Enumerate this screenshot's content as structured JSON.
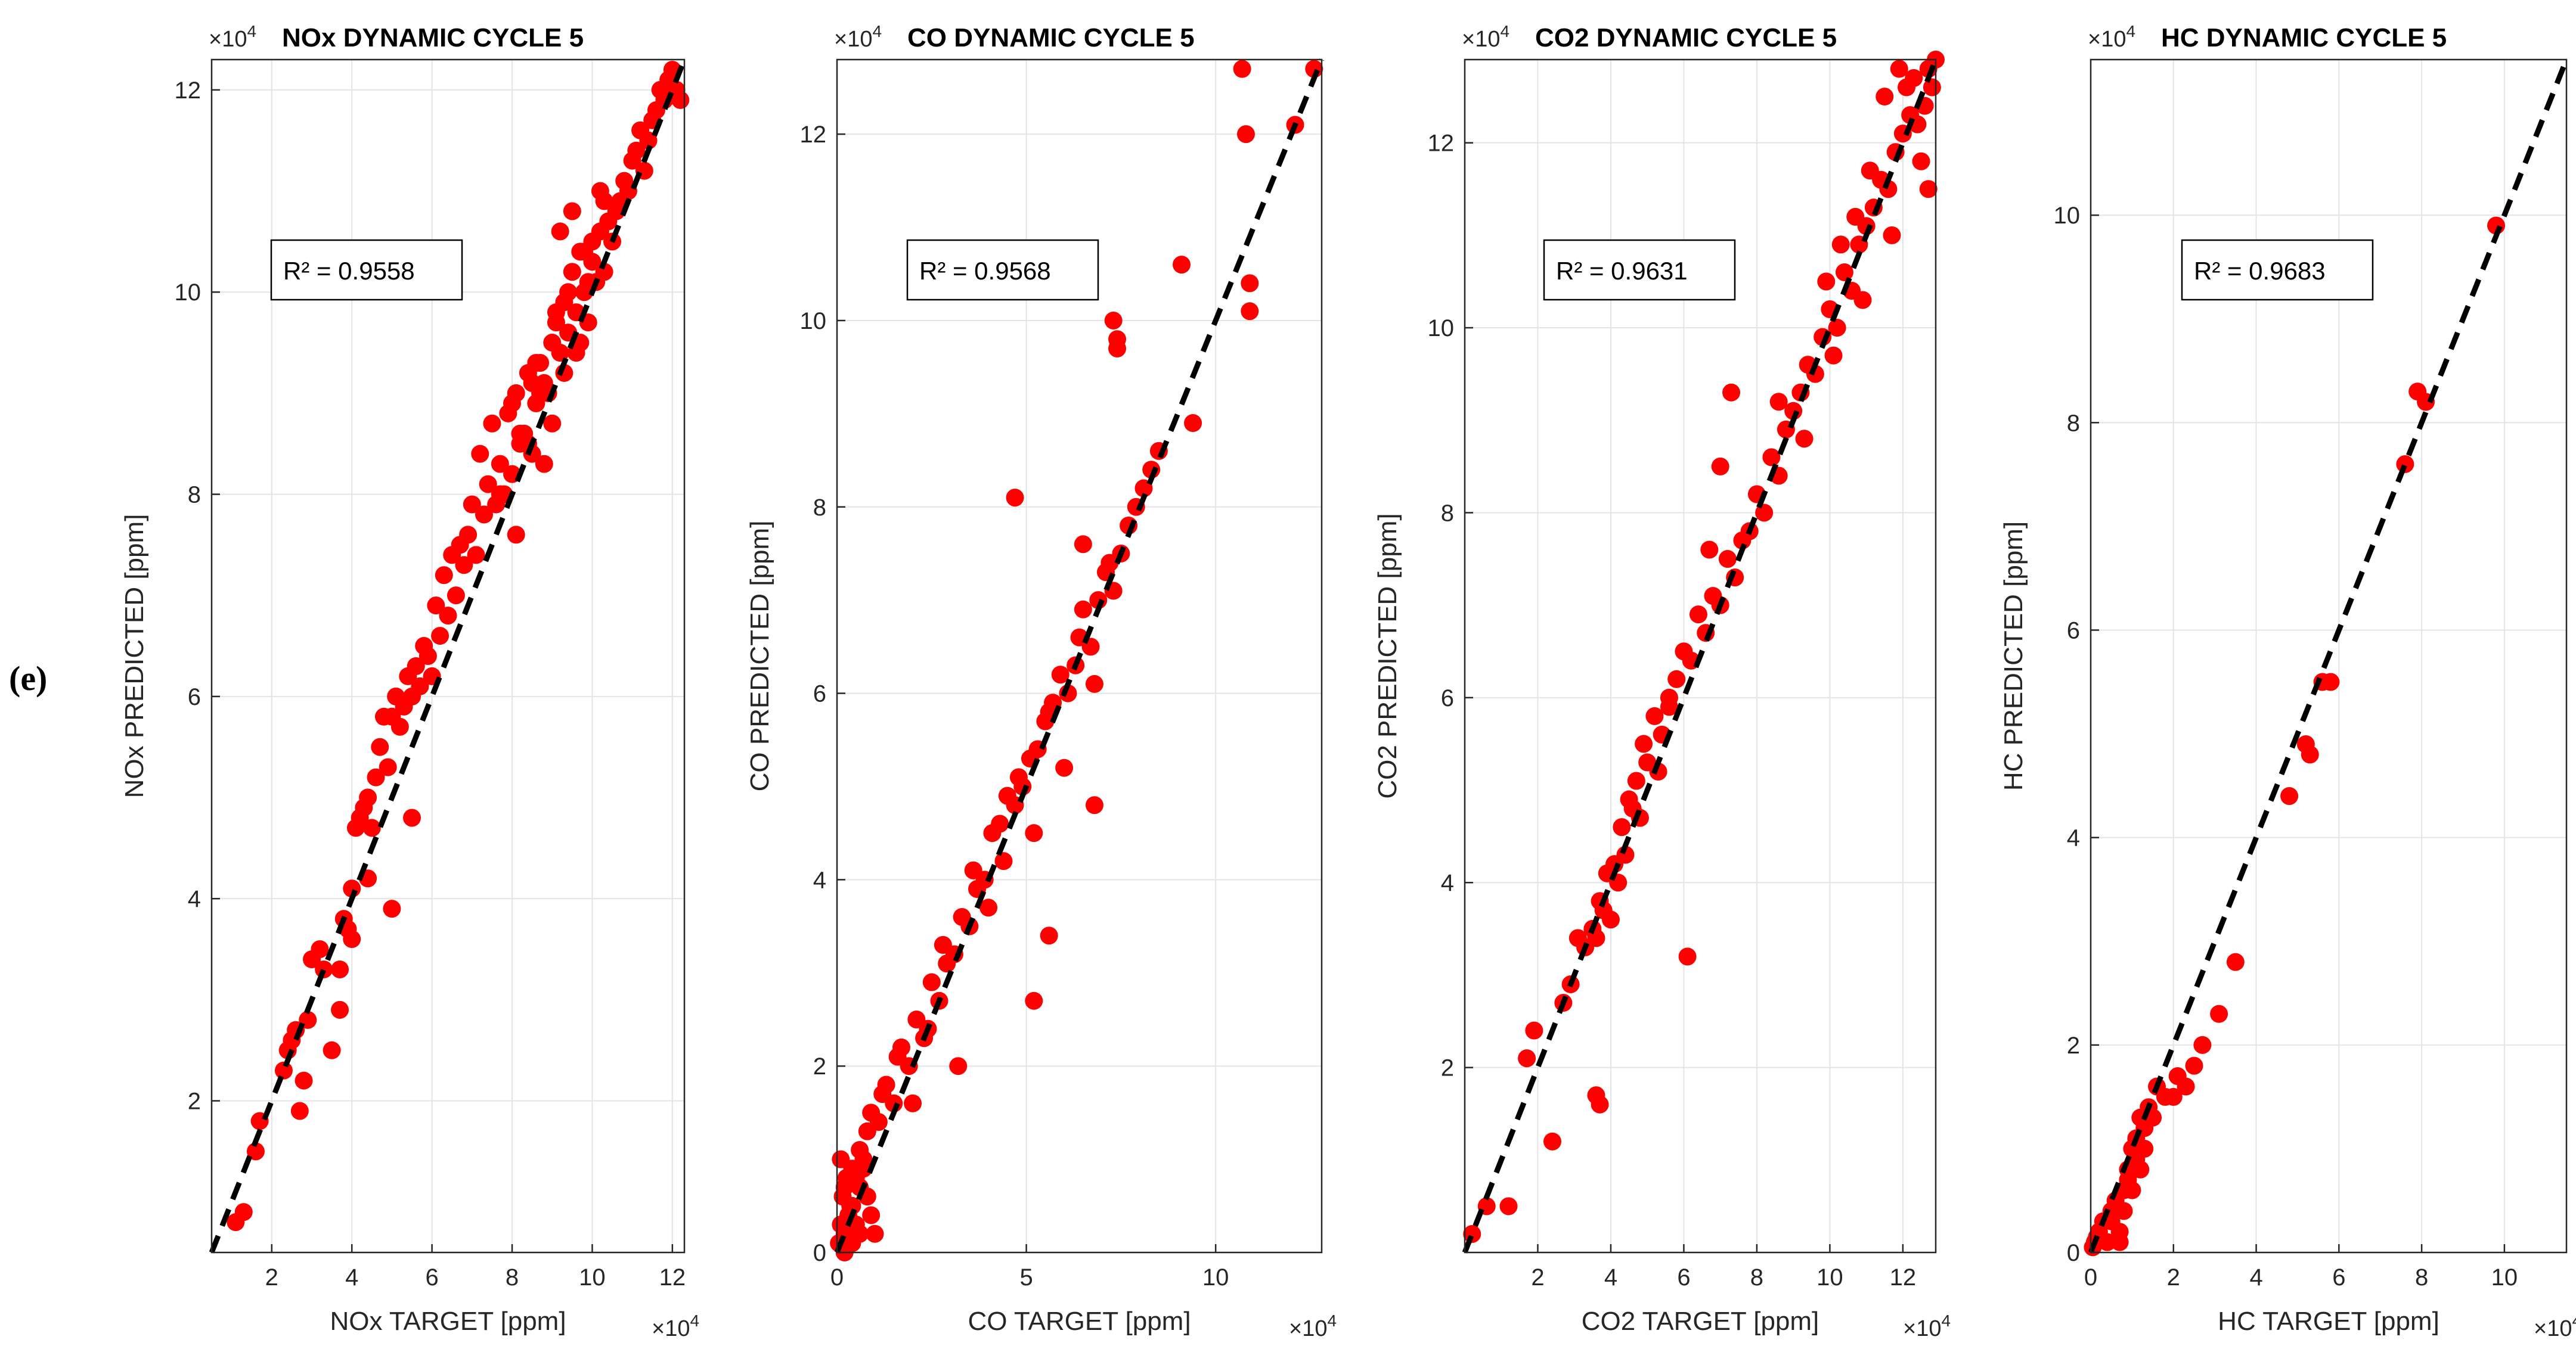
{
  "figure": {
    "panel_label": "(e)"
  },
  "colors": {
    "point": "#ff0000",
    "fit_line": "#000000",
    "grid": "#e4e4e4",
    "axes": "#262626"
  },
  "chart_data": [
    {
      "type": "scatter",
      "title": "NOx DYNAMIC CYCLE 5",
      "xlabel": "NOx TARGET [ppm]",
      "ylabel": "NOx PREDICTED [ppm]",
      "exponent": "×10^4",
      "xlim": [
        0.5,
        12.3
      ],
      "ylim": [
        0.5,
        12.3
      ],
      "xticks": [
        2,
        4,
        6,
        8,
        10,
        12
      ],
      "yticks": [
        2,
        4,
        6,
        8,
        10,
        12
      ],
      "grid": true,
      "r2_label": "R² = 0.9558",
      "r2_position": "upper-left",
      "fit_line": {
        "x": [
          0.5,
          12.3
        ],
        "y": [
          0.5,
          12.3
        ]
      },
      "series": [
        {
          "x": [
            1.1,
            1.3,
            1.6,
            1.7,
            2.3,
            2.4,
            2.5,
            2.6,
            2.8,
            2.9,
            3.0,
            3.2,
            3.3,
            3.5,
            3.7,
            3.8,
            3.9,
            4.0,
            4.1,
            4.2,
            4.3,
            4.4,
            4.5,
            4.6,
            4.7,
            4.8,
            4.9,
            5.0,
            5.1,
            5.2,
            5.3,
            5.4,
            5.5,
            5.6,
            5.7,
            5.8,
            5.9,
            6.0,
            6.1,
            6.2,
            6.3,
            6.4,
            6.5,
            6.6,
            6.7,
            6.8,
            6.9,
            7.0,
            7.1,
            7.2,
            7.3,
            7.4,
            7.5,
            7.6,
            7.7,
            7.8,
            7.9,
            8.0,
            8.1,
            8.2,
            8.3,
            8.4,
            8.5,
            8.6,
            8.7,
            8.8,
            8.9,
            9.0,
            9.1,
            9.2,
            9.3,
            9.4,
            9.5,
            9.6,
            9.7,
            9.8,
            9.9,
            10.0,
            10.1,
            10.2,
            10.3,
            10.4,
            10.5,
            10.6,
            10.7,
            10.8,
            10.9,
            11.0,
            11.1,
            11.2,
            11.3,
            11.4,
            11.5,
            11.6,
            11.7,
            11.8,
            11.9,
            12.0,
            12.1,
            12.2,
            7.7,
            8.1,
            8.4,
            8.7,
            9.0,
            9.3,
            9.6,
            9.9,
            8.0,
            8.5,
            8.8,
            9.1,
            9.4,
            9.7,
            10.0,
            10.3,
            8.2,
            8.6,
            9.2,
            9.5,
            9.8,
            10.2,
            4.4,
            5.0,
            5.5,
            4.0,
            3.7,
            2.7
          ],
          "y": [
            0.8,
            0.9,
            1.5,
            1.8,
            2.3,
            2.5,
            2.6,
            2.7,
            2.2,
            2.8,
            3.4,
            3.5,
            3.3,
            2.5,
            2.9,
            3.8,
            3.7,
            4.1,
            4.7,
            4.8,
            4.9,
            5.0,
            4.7,
            5.2,
            5.5,
            5.8,
            5.3,
            5.8,
            6.0,
            5.7,
            5.9,
            6.2,
            6.0,
            6.3,
            6.1,
            6.5,
            6.4,
            6.2,
            6.9,
            6.6,
            7.2,
            6.8,
            7.4,
            7.0,
            7.5,
            7.3,
            7.6,
            7.9,
            7.4,
            8.4,
            7.8,
            8.1,
            8.7,
            7.9,
            8.3,
            8.0,
            8.8,
            8.2,
            9.0,
            8.5,
            8.6,
            9.2,
            8.4,
            8.9,
            9.3,
            9.1,
            9.0,
            9.5,
            9.7,
            9.4,
            9.9,
            9.6,
            10.2,
            9.8,
            10.4,
            10.0,
            9.7,
            10.3,
            10.1,
            10.6,
            10.2,
            10.7,
            10.5,
            10.8,
            10.9,
            11.1,
            11.0,
            11.3,
            11.4,
            11.6,
            11.2,
            11.5,
            11.7,
            11.8,
            12.0,
            11.9,
            12.1,
            12.2,
            12.0,
            11.9,
            8.0,
            7.6,
            8.5,
            9.0,
            8.7,
            9.2,
            9.4,
            10.1,
            8.9,
            9.1,
            8.3,
            9.8,
            10.0,
            9.5,
            10.5,
            10.9,
            8.6,
            9.3,
            10.6,
            10.8,
            10.4,
            11.0,
            4.2,
            3.9,
            4.8,
            3.6,
            3.3,
            1.9
          ]
        }
      ]
    },
    {
      "type": "scatter",
      "title": "CO DYNAMIC CYCLE 5",
      "xlabel": "CO TARGET [ppm]",
      "ylabel": "CO PREDICTED [ppm]",
      "exponent": "×10^4",
      "xlim": [
        0,
        12.8
      ],
      "ylim": [
        0,
        12.8
      ],
      "xticks": [
        0,
        5,
        10
      ],
      "yticks": [
        0,
        2,
        4,
        6,
        8,
        10,
        12
      ],
      "grid": true,
      "r2_label": "R² = 0.9568",
      "r2_position": "upper-left",
      "fit_line": {
        "x": [
          0,
          12.8
        ],
        "y": [
          0,
          12.8
        ]
      },
      "series": [
        {
          "x": [
            0.05,
            0.1,
            0.15,
            0.2,
            0.25,
            0.3,
            0.35,
            0.4,
            0.5,
            0.6,
            0.7,
            0.8,
            0.9,
            1.0,
            0.1,
            0.2,
            0.3,
            0.4,
            0.5,
            0.6,
            0.7,
            0.8,
            0.2,
            0.4,
            0.6,
            0.9,
            1.1,
            1.3,
            1.5,
            1.7,
            1.9,
            2.1,
            2.3,
            2.5,
            2.7,
            2.9,
            3.1,
            3.3,
            3.5,
            3.7,
            3.9,
            4.1,
            4.3,
            4.5,
            4.7,
            4.9,
            5.1,
            5.3,
            5.5,
            5.7,
            5.9,
            6.1,
            6.3,
            6.5,
            6.7,
            6.9,
            7.1,
            7.3,
            7.5,
            7.7,
            7.9,
            8.1,
            8.3,
            1.2,
            1.6,
            2.0,
            2.4,
            2.8,
            3.2,
            3.6,
            4.0,
            4.4,
            4.8,
            5.2,
            5.6,
            6.0,
            6.4,
            6.8,
            7.2,
            4.7,
            7.4,
            7.3,
            7.4,
            9.1,
            9.4,
            10.7,
            10.8,
            10.9,
            10.9,
            12.1,
            12.6,
            5.2,
            5.6,
            6.8,
            8.5,
            6.5
          ],
          "y": [
            0.1,
            0.3,
            0.6,
            0.2,
            0.8,
            0.4,
            0.5,
            0.9,
            0.3,
            0.7,
            1.0,
            0.6,
            0.4,
            0.2,
            1.0,
            0.7,
            0.3,
            0.5,
            0.8,
            0.2,
            0.9,
            1.3,
            0.0,
            0.1,
            1.1,
            1.5,
            1.4,
            1.8,
            1.6,
            2.2,
            2.0,
            2.5,
            2.3,
            2.9,
            2.7,
            3.1,
            3.2,
            3.6,
            3.5,
            3.9,
            4.0,
            4.5,
            4.6,
            4.9,
            4.8,
            5.0,
            5.3,
            5.4,
            5.7,
            5.9,
            6.2,
            6.0,
            6.3,
            6.9,
            6.5,
            7.0,
            7.3,
            7.1,
            7.5,
            7.8,
            8.0,
            8.2,
            8.4,
            1.7,
            2.1,
            1.6,
            2.4,
            3.3,
            2.0,
            4.1,
            3.7,
            4.2,
            5.1,
            4.5,
            5.8,
            5.2,
            6.6,
            6.1,
            7.4,
            8.1,
            9.7,
            10.0,
            9.8,
            10.6,
            8.9,
            12.7,
            12.0,
            10.4,
            10.1,
            12.1,
            12.7,
            2.7,
            3.4,
            4.8,
            8.6,
            7.6
          ]
        }
      ]
    },
    {
      "type": "scatter",
      "title": "CO2 DYNAMIC CYCLE 5",
      "xlabel": "CO2 TARGET [ppm]",
      "ylabel": "CO2 PREDICTED [ppm]",
      "exponent": "×10^4",
      "xlim": [
        0,
        12.9
      ],
      "ylim": [
        0,
        12.9
      ],
      "xticks": [
        2,
        4,
        6,
        8,
        10,
        12
      ],
      "yticks": [
        2,
        4,
        6,
        8,
        10,
        12
      ],
      "grid": true,
      "r2_label": "R² = 0.9631",
      "r2_position": "upper-left",
      "fit_line": {
        "x": [
          0,
          12.9
        ],
        "y": [
          0,
          12.9
        ]
      },
      "series": [
        {
          "x": [
            0.2,
            0.6,
            1.2,
            1.7,
            1.9,
            2.4,
            2.7,
            2.9,
            3.1,
            3.3,
            3.5,
            3.6,
            3.7,
            3.8,
            3.9,
            4.0,
            4.1,
            4.2,
            4.3,
            4.4,
            4.5,
            4.6,
            4.7,
            4.8,
            4.9,
            5.0,
            5.2,
            5.4,
            5.6,
            5.8,
            6.0,
            6.2,
            6.4,
            6.6,
            6.8,
            7.0,
            7.2,
            7.4,
            7.6,
            7.8,
            8.0,
            8.2,
            8.4,
            8.6,
            8.8,
            9.0,
            9.2,
            9.4,
            9.6,
            9.8,
            10.0,
            10.2,
            10.4,
            10.6,
            10.8,
            11.0,
            11.2,
            11.4,
            11.6,
            11.8,
            12.0,
            12.2,
            12.4,
            12.6,
            12.8,
            11.5,
            11.9,
            12.3,
            12.7,
            11.1,
            10.7,
            10.3,
            9.9,
            3.6,
            3.7,
            6.1,
            7.3,
            7.0,
            6.7,
            5.6,
            5.3,
            8.6,
            9.3,
            10.1,
            10.9,
            11.7,
            12.5,
            12.9,
            12.1,
            12.7
          ],
          "y": [
            0.2,
            0.5,
            0.5,
            2.1,
            2.4,
            1.2,
            2.7,
            2.9,
            3.4,
            3.3,
            3.5,
            3.4,
            3.8,
            3.7,
            4.1,
            3.6,
            4.2,
            4.0,
            4.6,
            4.3,
            4.9,
            4.8,
            5.1,
            4.7,
            5.5,
            5.3,
            5.8,
            5.6,
            6.0,
            6.2,
            6.5,
            6.4,
            6.9,
            6.7,
            7.1,
            7.0,
            7.5,
            7.3,
            7.7,
            7.8,
            8.2,
            8.0,
            8.6,
            8.4,
            8.9,
            9.1,
            9.3,
            9.6,
            9.5,
            9.9,
            10.2,
            10.0,
            10.6,
            10.4,
            10.9,
            11.1,
            11.3,
            11.6,
            11.5,
            11.9,
            12.1,
            12.3,
            12.2,
            12.4,
            12.6,
            12.5,
            12.8,
            12.7,
            12.8,
            11.7,
            11.2,
            10.9,
            10.5,
            1.7,
            1.6,
            3.2,
            9.3,
            8.5,
            7.6,
            5.9,
            5.2,
            9.2,
            8.8,
            9.7,
            10.3,
            11.0,
            11.8,
            12.9,
            12.6,
            11.5
          ]
        }
      ]
    },
    {
      "type": "scatter",
      "title": "HC DYNAMIC CYCLE 5",
      "xlabel": "HC TARGET [ppm]",
      "ylabel": "HC PREDICTED [ppm]",
      "exponent": "×10^4",
      "xlim": [
        0,
        11.5
      ],
      "ylim": [
        0,
        11.5
      ],
      "xticks": [
        0,
        2,
        4,
        6,
        8,
        10
      ],
      "yticks": [
        0,
        2,
        4,
        6,
        8,
        10
      ],
      "grid": true,
      "r2_label": "R² = 0.9683",
      "r2_position": "upper-left",
      "fit_line": {
        "x": [
          0,
          11.5
        ],
        "y": [
          0,
          11.5
        ]
      },
      "series": [
        {
          "x": [
            0.05,
            0.1,
            0.15,
            0.2,
            0.3,
            0.4,
            0.5,
            0.6,
            0.7,
            0.8,
            0.9,
            1.0,
            1.1,
            1.2,
            1.3,
            1.4,
            1.5,
            0.9,
            1.1,
            1.3,
            0.8,
            1.0,
            1.2,
            0.5,
            0.7,
            2.0,
            2.1,
            2.3,
            2.5,
            2.7,
            3.1,
            3.5,
            4.8,
            5.2,
            5.3,
            5.6,
            5.8,
            7.6,
            7.9,
            8.1,
            9.8,
            1.6,
            1.8
          ],
          "y": [
            0.05,
            0.1,
            0.15,
            0.2,
            0.3,
            0.1,
            0.4,
            0.5,
            0.2,
            0.6,
            0.8,
            1.0,
            1.1,
            1.3,
            1.2,
            1.4,
            1.3,
            0.7,
            0.9,
            1.0,
            0.4,
            0.6,
            0.8,
            0.3,
            0.1,
            1.5,
            1.7,
            1.6,
            1.8,
            2.0,
            2.3,
            2.8,
            4.4,
            4.9,
            4.8,
            5.5,
            5.5,
            7.6,
            8.3,
            8.2,
            9.9,
            1.6,
            1.5
          ]
        }
      ]
    }
  ]
}
